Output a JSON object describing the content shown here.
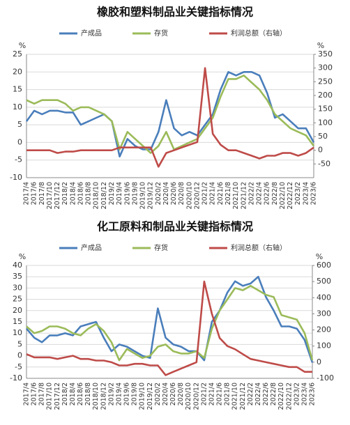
{
  "chart_data": [
    {
      "type": "line",
      "title": "橡胶和塑料制品业关键指标情况",
      "ylabel": "%",
      "y2label": "%",
      "legend": "top",
      "grid": true,
      "categories": [
        "2017/4",
        "2017/6",
        "2017/8",
        "2017/10",
        "2017/12",
        "2018/2",
        "2018/4",
        "2018/6",
        "2018/8",
        "2018/10",
        "2018/12",
        "2019/2",
        "2019/4",
        "2019/6",
        "2019/8",
        "2019/10",
        "2019/12",
        "2020/2",
        "2020/4",
        "2020/6",
        "2020/8",
        "2020/10",
        "2020/12",
        "2021/2",
        "2021/4",
        "2021/6",
        "2021/8",
        "2021/10",
        "2021/12",
        "2022/2",
        "2022/4",
        "2022/6",
        "2022/8",
        "2022/10",
        "2022/12",
        "2023/2",
        "2023/4",
        "2023/6"
      ],
      "ylim": [
        -10,
        25
      ],
      "yticks": [
        -10,
        -5,
        0,
        5,
        10,
        15,
        20,
        25
      ],
      "y2lim": [
        -100,
        350
      ],
      "y2ticks": [
        -50,
        0,
        50,
        100,
        150,
        200,
        250,
        300,
        350
      ],
      "series": [
        {
          "name": "产成品",
          "color": "#4a7ebb",
          "values": [
            6,
            9,
            8,
            9,
            9,
            8.5,
            8.5,
            5,
            6,
            7,
            8,
            6,
            -4,
            1,
            -1,
            -2,
            -2,
            3,
            12,
            4,
            2,
            3,
            2,
            5,
            8,
            15,
            20,
            19,
            20,
            20,
            19,
            14,
            7,
            8,
            6,
            4,
            4,
            0
          ]
        },
        {
          "name": "存货",
          "color": "#9bbb59",
          "values": [
            12,
            11,
            12,
            12,
            12,
            11,
            9,
            10,
            10,
            9,
            8,
            6,
            -2,
            3,
            1,
            -1,
            -3,
            -1,
            3,
            -2,
            -1,
            0,
            1,
            4,
            7,
            13,
            18,
            18,
            19,
            17,
            15,
            12,
            8,
            6,
            4,
            3,
            2,
            -1
          ]
        },
        {
          "name": "利润总额（右轴）",
          "color": "#be4b48",
          "axis": "y2",
          "values": [
            0,
            0,
            0,
            0,
            -10,
            -5,
            -5,
            0,
            0,
            0,
            0,
            0,
            10,
            10,
            10,
            10,
            10,
            -60,
            -10,
            0,
            10,
            20,
            30,
            300,
            60,
            20,
            0,
            0,
            -10,
            -20,
            -30,
            -20,
            -20,
            -10,
            -10,
            -20,
            -10,
            10
          ]
        }
      ]
    },
    {
      "type": "line",
      "title": "化工原料和制品业关键指标情况",
      "ylabel": "%",
      "y2label": "%",
      "legend": "top",
      "grid": true,
      "categories": [
        "2017/4",
        "2017/6",
        "2017/8",
        "2017/10",
        "2017/12",
        "2018/2",
        "2018/4",
        "2018/6",
        "2018/8",
        "2018/10",
        "2018/12",
        "2019/2",
        "2019/4",
        "2019/6",
        "2019/8",
        "2019/10",
        "2019/12",
        "2020/2",
        "2020/4",
        "2020/6",
        "2020/8",
        "2020/10",
        "2020/12",
        "2021/2",
        "2021/4",
        "2021/6",
        "2021/8",
        "2021/10",
        "2021/12",
        "2022/2",
        "2022/4",
        "2022/6",
        "2022/8",
        "2022/10",
        "2022/12",
        "2023/2",
        "2023/4",
        "2023/6"
      ],
      "ylim": [
        -10,
        40
      ],
      "yticks": [
        -10,
        -5,
        0,
        5,
        10,
        15,
        20,
        25,
        30,
        35,
        40
      ],
      "y2lim": [
        -100,
        600
      ],
      "y2ticks": [
        -100,
        0,
        100,
        200,
        300,
        400,
        500,
        600
      ],
      "series": [
        {
          "name": "产成品",
          "color": "#4a7ebb",
          "values": [
            12,
            8,
            6,
            9,
            9,
            10,
            9,
            13,
            14,
            15,
            8,
            2,
            5,
            4,
            2,
            0,
            -1,
            21,
            8,
            5,
            4,
            2,
            2,
            -2,
            15,
            20,
            28,
            33,
            31,
            32,
            35,
            26,
            20,
            13,
            13,
            12,
            7,
            -3
          ]
        },
        {
          "name": "存货",
          "color": "#9bbb59",
          "values": [
            13,
            10,
            11,
            13,
            13,
            12,
            10,
            9,
            12,
            14,
            11,
            6,
            -2,
            3,
            1,
            -1,
            0,
            4,
            5,
            2,
            1,
            1,
            2,
            -1,
            12,
            20,
            25,
            30,
            29,
            31,
            29,
            27,
            26,
            18,
            17,
            16,
            10,
            -2
          ]
        },
        {
          "name": "利润总额（右轴）",
          "color": "#be4b48",
          "axis": "y2",
          "values": [
            50,
            30,
            30,
            30,
            20,
            30,
            40,
            20,
            20,
            10,
            10,
            0,
            -20,
            -20,
            -10,
            -10,
            -20,
            -20,
            -80,
            -60,
            -40,
            -20,
            0,
            500,
            300,
            150,
            100,
            80,
            50,
            20,
            10,
            0,
            -10,
            -20,
            -30,
            -30,
            -60,
            -60
          ]
        }
      ]
    }
  ]
}
